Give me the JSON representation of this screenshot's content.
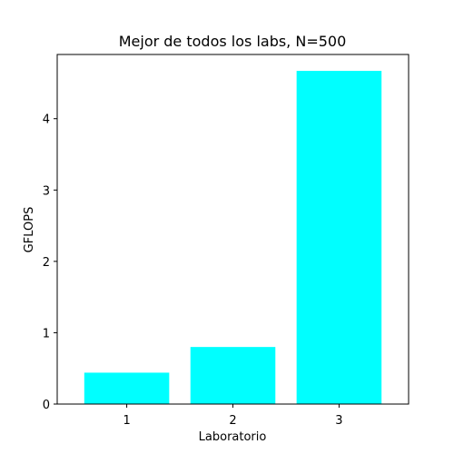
{
  "chart_data": {
    "type": "bar",
    "title": "Mejor de todos los labs, N=500",
    "xlabel": "Laboratorio",
    "ylabel": "GFLOPS",
    "categories": [
      "1",
      "2",
      "3"
    ],
    "values": [
      0.44,
      0.8,
      4.67
    ],
    "ylim": [
      0,
      4.9
    ],
    "yticks": [
      "0",
      "1",
      "2",
      "3",
      "4"
    ],
    "grid": false,
    "bar_color": "#00ffff"
  }
}
